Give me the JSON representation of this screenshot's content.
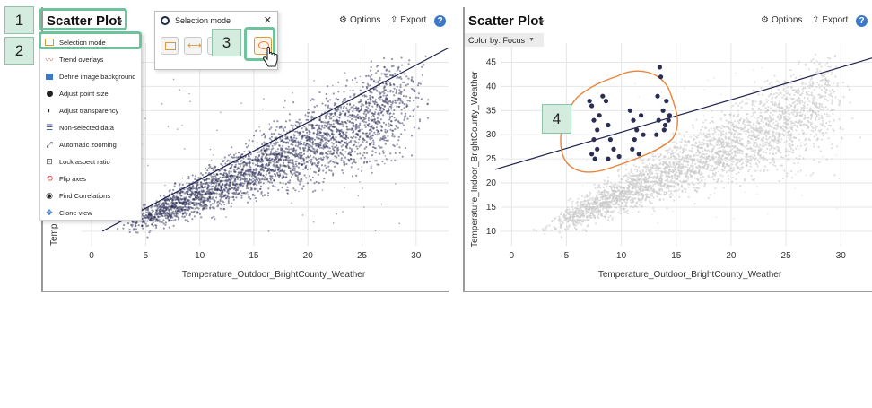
{
  "left_panel": {
    "title": "Scatter Plot",
    "options_label": "Options",
    "export_label": "Export",
    "help_label": "?",
    "y_axis_label_visible": "Temp",
    "x_axis_label": "Temperature_Outdoor_BrightCounty_Weather",
    "x_ticks": [
      "0",
      "5",
      "10",
      "15",
      "20",
      "25",
      "30"
    ]
  },
  "right_panel": {
    "title": "Scatter Plot",
    "options_label": "Options",
    "export_label": "Export",
    "help_label": "?",
    "color_by": "Color by: Focus",
    "y_axis_label": "Temperature_Indoor_BrightCounty_Weather",
    "x_axis_label": "Temperature_Outdoor_BrightCounty_Weather",
    "x_ticks": [
      "0",
      "5",
      "10",
      "15",
      "20",
      "25",
      "30"
    ],
    "y_ticks": [
      "10",
      "15",
      "20",
      "25",
      "30",
      "35",
      "40",
      "45"
    ]
  },
  "menu": {
    "items": [
      {
        "label": "Selection mode",
        "icon": "selection-rect-icon",
        "color": "#d89a3c"
      },
      {
        "label": "Trend overlays",
        "icon": "trend-icon",
        "color": "#cc6a6a"
      },
      {
        "label": "Define image background",
        "icon": "image-icon",
        "color": "#3a78c9"
      },
      {
        "label": "Adjust point size",
        "icon": "point-size-icon",
        "color": "#222222"
      },
      {
        "label": "Adjust transparency",
        "icon": "transparency-icon",
        "color": "#222222"
      },
      {
        "label": "Non-selected data",
        "icon": "non-selected-icon",
        "color": "#3a4a8a"
      },
      {
        "label": "Automatic zooming",
        "icon": "zoom-icon",
        "color": "#444444"
      },
      {
        "label": "Lock aspect ratio",
        "icon": "lock-icon",
        "color": "#444444"
      },
      {
        "label": "Flip axes",
        "icon": "flip-icon",
        "color": "#cc3333"
      },
      {
        "label": "Find Correlations",
        "icon": "eye-icon",
        "color": "#222222"
      },
      {
        "label": "Clone view",
        "icon": "clone-icon",
        "color": "#3a78c9"
      }
    ]
  },
  "selection_popup": {
    "title": "Selection mode",
    "close": "✕",
    "modes": [
      "rectangle-select-icon",
      "x-range-select-icon",
      "y-range-select-icon",
      "lasso-select-icon"
    ]
  },
  "callouts": [
    "1",
    "2",
    "3",
    "4"
  ],
  "colors": {
    "accent": "#6cc39c",
    "callout_bg": "#d4ecdf",
    "point_dark": "#2b2d55",
    "point_grey": "#c8c8c8",
    "lasso": "#e8843c",
    "trend_line": "#1d1f4d"
  },
  "chart_data": [
    {
      "type": "scatter",
      "title": "Scatter Plot",
      "xlabel": "Temperature_Outdoor_BrightCounty_Weather",
      "ylabel": "Temp",
      "xlim": [
        -1,
        33
      ],
      "ylim": [
        7,
        49
      ],
      "xticks": [
        0,
        5,
        10,
        15,
        20,
        25,
        30
      ],
      "trend_line": {
        "x": [
          1,
          33
        ],
        "y": [
          10,
          48
        ]
      },
      "points_description": "dense positively-correlated cloud, dark navy"
    },
    {
      "type": "scatter",
      "title": "Scatter Plot",
      "xlabel": "Temperature_Outdoor_BrightCounty_Weather",
      "ylabel": "Temperature_Indoor_BrightCounty_Weather",
      "xlim": [
        -1,
        33
      ],
      "ylim": [
        7,
        49
      ],
      "xticks": [
        0,
        5,
        10,
        15,
        20,
        25,
        30
      ],
      "yticks": [
        10,
        15,
        20,
        25,
        30,
        35,
        40,
        45
      ],
      "trend_line": {
        "x": [
          -1.5,
          33
        ],
        "y": [
          22.8,
          46
        ]
      },
      "selected_points": [
        [
          7.1,
          37
        ],
        [
          7.3,
          36
        ],
        [
          7.5,
          33
        ],
        [
          7.8,
          31
        ],
        [
          8.0,
          34
        ],
        [
          7.5,
          29
        ],
        [
          7.3,
          26
        ],
        [
          7.6,
          25
        ],
        [
          7.8,
          27
        ],
        [
          8.3,
          38
        ],
        [
          8.6,
          37
        ],
        [
          8.8,
          32
        ],
        [
          9.0,
          29
        ],
        [
          8.8,
          25
        ],
        [
          9.3,
          27
        ],
        [
          9.8,
          25.5
        ],
        [
          10.8,
          35
        ],
        [
          11.1,
          33
        ],
        [
          11.4,
          31
        ],
        [
          11.2,
          29
        ],
        [
          11.0,
          27
        ],
        [
          11.6,
          26
        ],
        [
          11.8,
          34
        ],
        [
          12.0,
          30
        ],
        [
          13.5,
          44
        ],
        [
          13.6,
          42
        ],
        [
          13.3,
          38
        ],
        [
          13.8,
          35
        ],
        [
          13.4,
          33
        ],
        [
          14.0,
          32
        ],
        [
          14.3,
          33
        ],
        [
          13.9,
          31
        ],
        [
          14.1,
          37
        ],
        [
          14.4,
          34
        ],
        [
          13.2,
          30
        ]
      ],
      "points_description": "grey background cloud with highlighted (focus) points inside lasso"
    }
  ]
}
